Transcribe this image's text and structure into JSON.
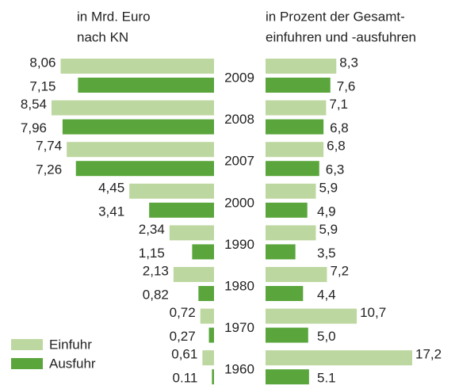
{
  "chart_data": [
    {
      "type": "bar",
      "orientation": "horizontal-left",
      "title": [
        "in Mrd. Euro",
        "nach KN"
      ],
      "categories": [
        "2009",
        "2008",
        "2007",
        "2000",
        "1990",
        "1980",
        "1970",
        "1960"
      ],
      "series": [
        {
          "name": "Einfuhr",
          "color": "#bdd7a0",
          "values": [
            8.06,
            8.54,
            7.74,
            4.45,
            2.34,
            2.13,
            0.72,
            0.61
          ],
          "value_labels": [
            "8,06",
            "8,54",
            "7,74",
            "4,45",
            "2,34",
            "2,13",
            "0,72",
            "0,61"
          ]
        },
        {
          "name": "Ausfuhr",
          "color": "#5aa63c",
          "values": [
            7.15,
            7.96,
            7.26,
            3.41,
            1.15,
            0.82,
            0.27,
            0.11
          ],
          "value_labels": [
            "7,15",
            "7,96",
            "7,26",
            "3,41",
            "1,15",
            "0,82",
            "0,27",
            "0.11"
          ]
        }
      ]
    },
    {
      "type": "bar",
      "orientation": "horizontal-right",
      "title": [
        "in Prozent der Gesamt-",
        "einfuhren und -ausfuhren"
      ],
      "series": [
        {
          "color": "#bdd7a0",
          "values": [
            8.3,
            7.1,
            6.8,
            5.9,
            5.9,
            7.2,
            10.7,
            17.2
          ],
          "value_labels": [
            "8,3",
            "7,1",
            "6,8",
            "5,9",
            "5,9",
            "7,2",
            "10,7",
            "17,2"
          ]
        },
        {
          "color": "#5aa63c",
          "values": [
            7.6,
            6.8,
            6.3,
            4.9,
            3.5,
            4.4,
            5.0,
            5.1
          ],
          "value_labels": [
            "7,6",
            "6,8",
            "6,3",
            "4,9",
            "3,5",
            "4,4",
            "5,0",
            "5.1"
          ]
        }
      ]
    }
  ]
}
